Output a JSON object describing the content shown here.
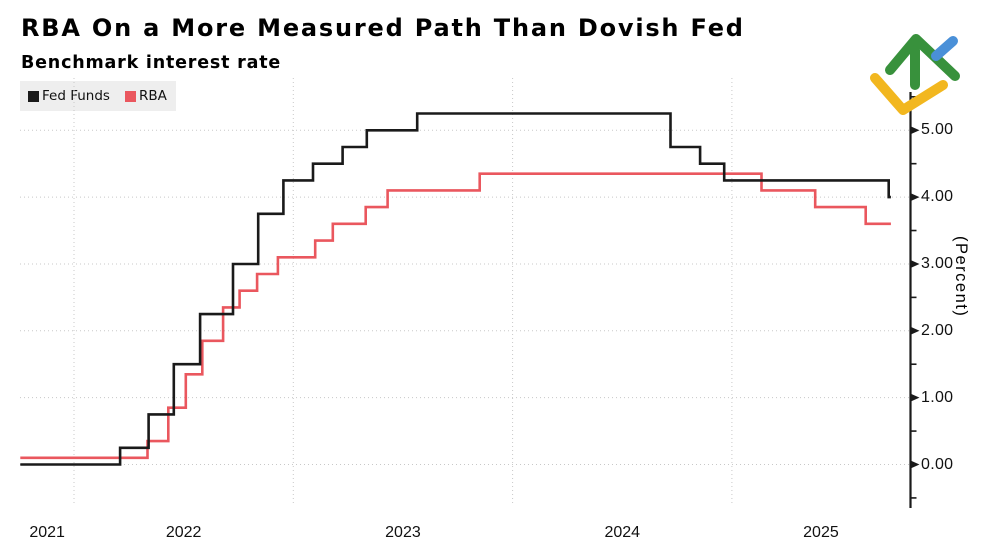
{
  "chart_data": {
    "type": "line",
    "variant": "step",
    "title": "RBA On a More Measured Path Than Dovish Fed",
    "subtitle": "Benchmark interest rate",
    "ylabel": "(Percent)",
    "y_axis_side": "right",
    "legend_position": "top-left",
    "grid": "dotted",
    "x_range_years": [
      2021.755,
      2025.815
    ],
    "ylim": [
      -0.65,
      5.6
    ],
    "yticks": [
      {
        "value": 0,
        "label": "0.00"
      },
      {
        "value": 1,
        "label": "1.00"
      },
      {
        "value": 2,
        "label": "2.00"
      },
      {
        "value": 3,
        "label": "3.00"
      },
      {
        "value": 4,
        "label": "4.00"
      },
      {
        "value": 5,
        "label": "5.00"
      }
    ],
    "yticks_minor": [
      -0.5,
      0.5,
      1.5,
      2.5,
      3.5,
      4.5,
      5.5
    ],
    "x_year_gridlines": [
      2022,
      2023,
      2024,
      2025
    ],
    "xlabels": [
      {
        "label": "2021",
        "span": [
          2021.755,
          2022
        ]
      },
      {
        "label": "2022",
        "span": [
          2022,
          2023
        ]
      },
      {
        "label": "2023",
        "span": [
          2023,
          2024
        ]
      },
      {
        "label": "2024",
        "span": [
          2024,
          2025
        ]
      },
      {
        "label": "2025",
        "span": [
          2025,
          2025.815
        ]
      }
    ],
    "series": [
      {
        "name": "Fed Funds",
        "color": "#1a1a1a",
        "points": [
          [
            2021.755,
            0.0
          ],
          [
            2022.21,
            0.25
          ],
          [
            2022.34,
            0.75
          ],
          [
            2022.455,
            1.5
          ],
          [
            2022.575,
            2.25
          ],
          [
            2022.725,
            3.0
          ],
          [
            2022.84,
            3.75
          ],
          [
            2022.955,
            4.25
          ],
          [
            2023.09,
            4.5
          ],
          [
            2023.225,
            4.75
          ],
          [
            2023.335,
            5.0
          ],
          [
            2023.565,
            5.25
          ],
          [
            2024.72,
            4.75
          ],
          [
            2024.855,
            4.5
          ],
          [
            2024.965,
            4.25
          ],
          [
            2025.715,
            4.0
          ],
          [
            2025.725,
            4.0
          ]
        ]
      },
      {
        "name": "RBA",
        "color": "#ea575e",
        "points": [
          [
            2021.755,
            0.1
          ],
          [
            2022.335,
            0.35
          ],
          [
            2022.43,
            0.85
          ],
          [
            2022.51,
            1.35
          ],
          [
            2022.585,
            1.85
          ],
          [
            2022.68,
            2.35
          ],
          [
            2022.755,
            2.6
          ],
          [
            2022.835,
            2.85
          ],
          [
            2022.93,
            3.1
          ],
          [
            2023.1,
            3.35
          ],
          [
            2023.18,
            3.6
          ],
          [
            2023.33,
            3.85
          ],
          [
            2023.43,
            4.1
          ],
          [
            2023.85,
            4.35
          ],
          [
            2025.135,
            4.1
          ],
          [
            2025.38,
            3.85
          ],
          [
            2025.61,
            3.6
          ],
          [
            2025.725,
            3.6
          ]
        ]
      }
    ]
  },
  "legend": {
    "background": "#eeeeee",
    "items": [
      {
        "label": "Fed Funds",
        "color": "#1a1a1a"
      },
      {
        "label": "RBA",
        "color": "#ea575e"
      }
    ]
  },
  "colors": {
    "axis": "#1a1a1a",
    "gridline": "#c8c8c8",
    "background": "#ffffff",
    "text": "#111111"
  },
  "logo": {
    "name": "litefinance-logo",
    "green": "#38913c",
    "blue": "#4a90d8",
    "yellow": "#f2b71f"
  }
}
